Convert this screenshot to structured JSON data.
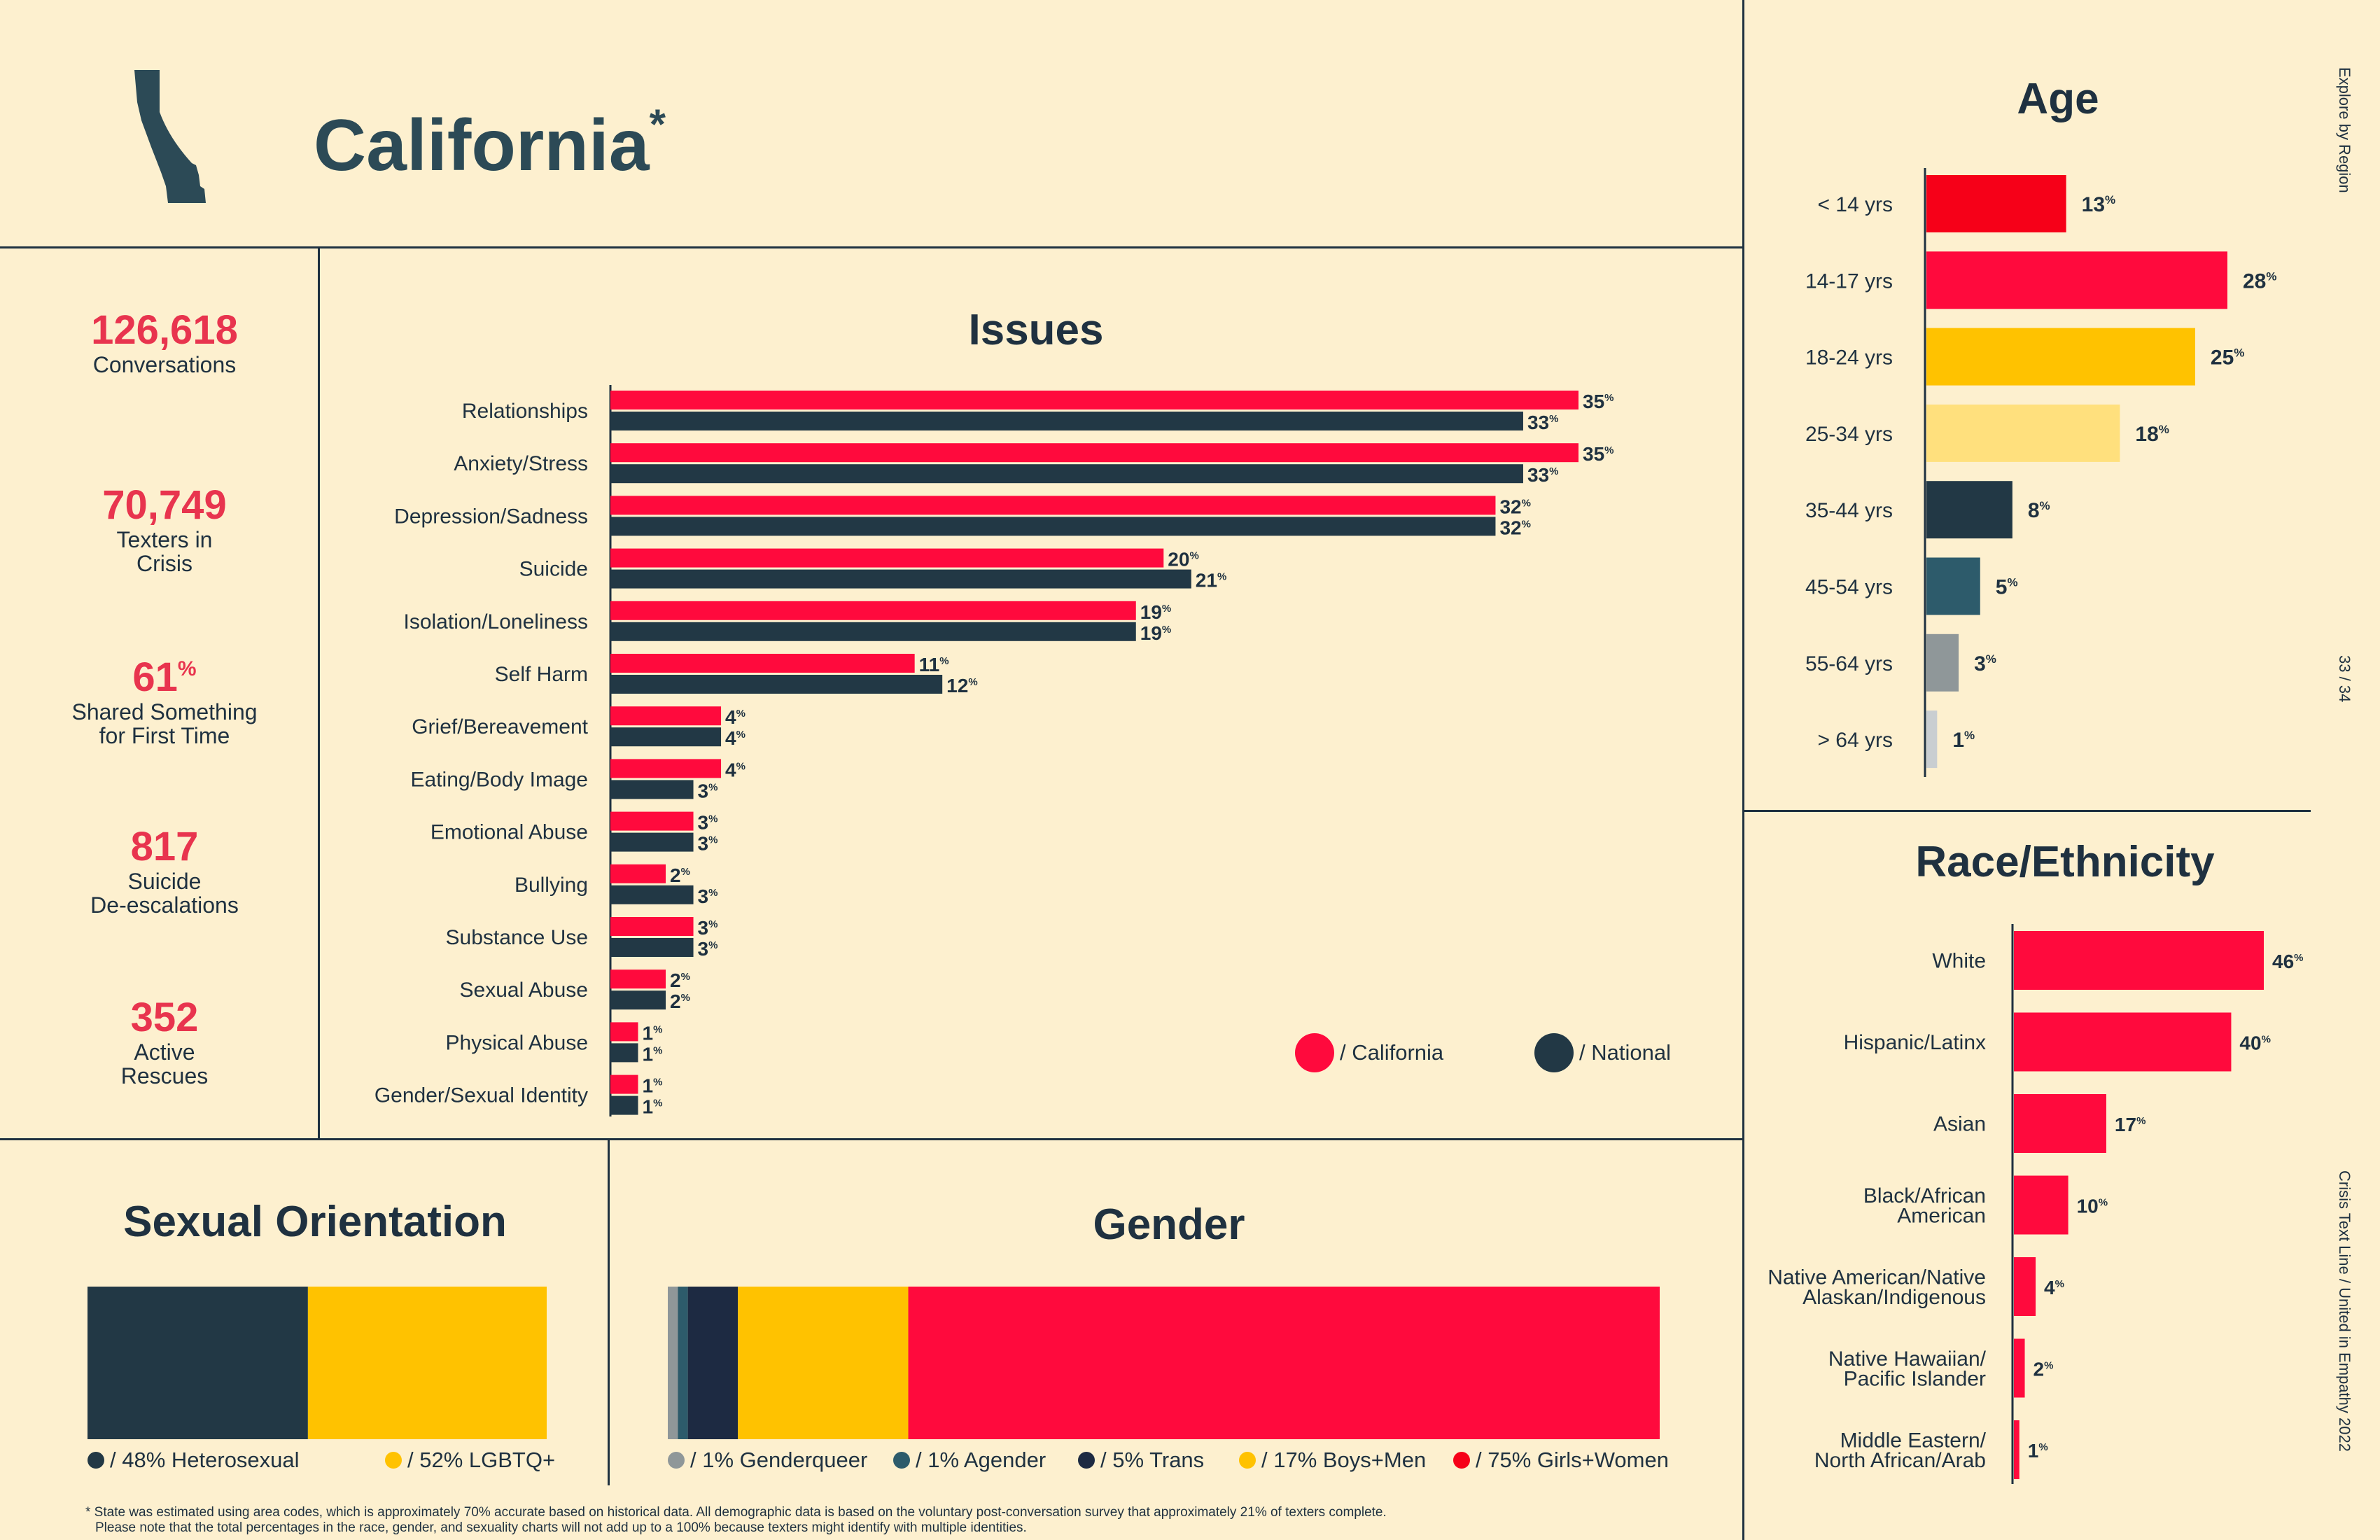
{
  "header": {
    "title": "California",
    "asterisk": "*"
  },
  "stats": [
    {
      "value": "126,618",
      "label": "Conversations"
    },
    {
      "value": "70,749",
      "label": "Texters in\nCrisis"
    },
    {
      "value": "61",
      "unit": "%",
      "label": "Shared Something\nfor First Time"
    },
    {
      "value": "817",
      "label": "Suicide\nDe-escalations"
    },
    {
      "value": "352",
      "label": "Active\nRescues"
    }
  ],
  "side_text": {
    "top": "Explore by Region",
    "page": "33 / 34",
    "bottom": "Crisis Text Line  /  United in Empathy 2022"
  },
  "footnote": {
    "line1": "* State was estimated using area codes, which is approximately 70% accurate based on historical data. All demographic data is based on the voluntary post-conversation survey that approximately 21% of texters complete.",
    "line2": "Please note that the total percentages in the race, gender, and sexuality charts will not add up to a 100% because texters might identify with multiple identities."
  },
  "colors": {
    "background": "#fdf0cf",
    "ink": "#1f3140",
    "red": "#ff0a3d",
    "stat_red": "#e8344e",
    "dark": "#223845",
    "yellow": "#ffc200",
    "light_yellow": "#ffe07d",
    "teal": "#2d5b6b",
    "gray": "#8f9799",
    "light_gray": "#c9ced1",
    "bright_red": "#f60018",
    "title_teal": "#2c4a56"
  },
  "chart_data": [
    {
      "type": "bar",
      "orientation": "horizontal",
      "title": "Issues",
      "categories": [
        "Relationships",
        "Anxiety/Stress",
        "Depression/Sadness",
        "Suicide",
        "Isolation/Loneliness",
        "Self Harm",
        "Grief/Bereavement",
        "Eating/Body Image",
        "Emotional Abuse",
        "Bullying",
        "Substance Use",
        "Sexual Abuse",
        "Physical Abuse",
        "Gender/Sexual Identity"
      ],
      "series": [
        {
          "name": "California",
          "color": "#ff0a3d",
          "values": [
            35,
            35,
            32,
            20,
            19,
            11,
            4,
            4,
            3,
            2,
            3,
            2,
            1,
            1
          ]
        },
        {
          "name": "National",
          "color": "#223845",
          "values": [
            33,
            33,
            32,
            21,
            19,
            12,
            4,
            3,
            3,
            3,
            3,
            2,
            1,
            1
          ]
        }
      ],
      "value_suffix": "%",
      "legend": [
        {
          "label": "/ California",
          "color": "#ff0a3d"
        },
        {
          "label": "/ National",
          "color": "#223845"
        }
      ],
      "legend_position": "bottom-right",
      "xlim": [
        0,
        35
      ]
    },
    {
      "type": "bar",
      "orientation": "horizontal",
      "title": "Age",
      "categories": [
        "< 14 yrs",
        "14-17 yrs",
        "18-24 yrs",
        "25-34 yrs",
        "35-44 yrs",
        "45-54 yrs",
        "55-64 yrs",
        "> 64 yrs"
      ],
      "values": [
        13,
        28,
        25,
        18,
        8,
        5,
        3,
        1
      ],
      "colors": [
        "#f60018",
        "#ff0a3d",
        "#ffc200",
        "#ffe07d",
        "#223845",
        "#2d5b6b",
        "#8f9799",
        "#c9ced1"
      ],
      "value_suffix": "%",
      "xlim": [
        0,
        28
      ]
    },
    {
      "type": "bar",
      "orientation": "horizontal",
      "title": "Race/Ethnicity",
      "categories": [
        "White",
        "Hispanic/Latinx",
        "Asian",
        "Black/African\nAmerican",
        "Native American/Native\nAlaskan/Indigenous",
        "Native Hawaiian/\nPacific Islander",
        "Middle Eastern/\nNorth African/Arab"
      ],
      "values": [
        46,
        40,
        17,
        10,
        4,
        2,
        1
      ],
      "color": "#ff0a3d",
      "value_suffix": "%",
      "xlim": [
        0,
        46
      ]
    },
    {
      "type": "bar",
      "orientation": "stacked-horizontal",
      "title": "Sexual Orientation",
      "segments": [
        {
          "name": "Heterosexual",
          "value": 48,
          "color": "#223845",
          "legend": "/ 48% Heterosexual"
        },
        {
          "name": "LGBTQ+",
          "value": 52,
          "color": "#ffc200",
          "legend": "/ 52% LGBTQ+"
        }
      ]
    },
    {
      "type": "bar",
      "orientation": "stacked-horizontal",
      "title": "Gender",
      "segments": [
        {
          "name": "Genderqueer",
          "value": 1,
          "color": "#8f9799",
          "legend": "/ 1% Genderqueer"
        },
        {
          "name": "Agender",
          "value": 1,
          "color": "#2d5b6b",
          "legend": "/ 1% Agender"
        },
        {
          "name": "Trans",
          "value": 5,
          "color": "#1d2a42",
          "legend": "/ 5% Trans"
        },
        {
          "name": "Boys+Men",
          "value": 17,
          "color": "#ffc200",
          "legend": "/ 17% Boys+Men"
        },
        {
          "name": "Girls+Women",
          "value": 75,
          "color": "#ff0a3d",
          "legend": "/ 75% Girls+Women"
        }
      ]
    }
  ]
}
